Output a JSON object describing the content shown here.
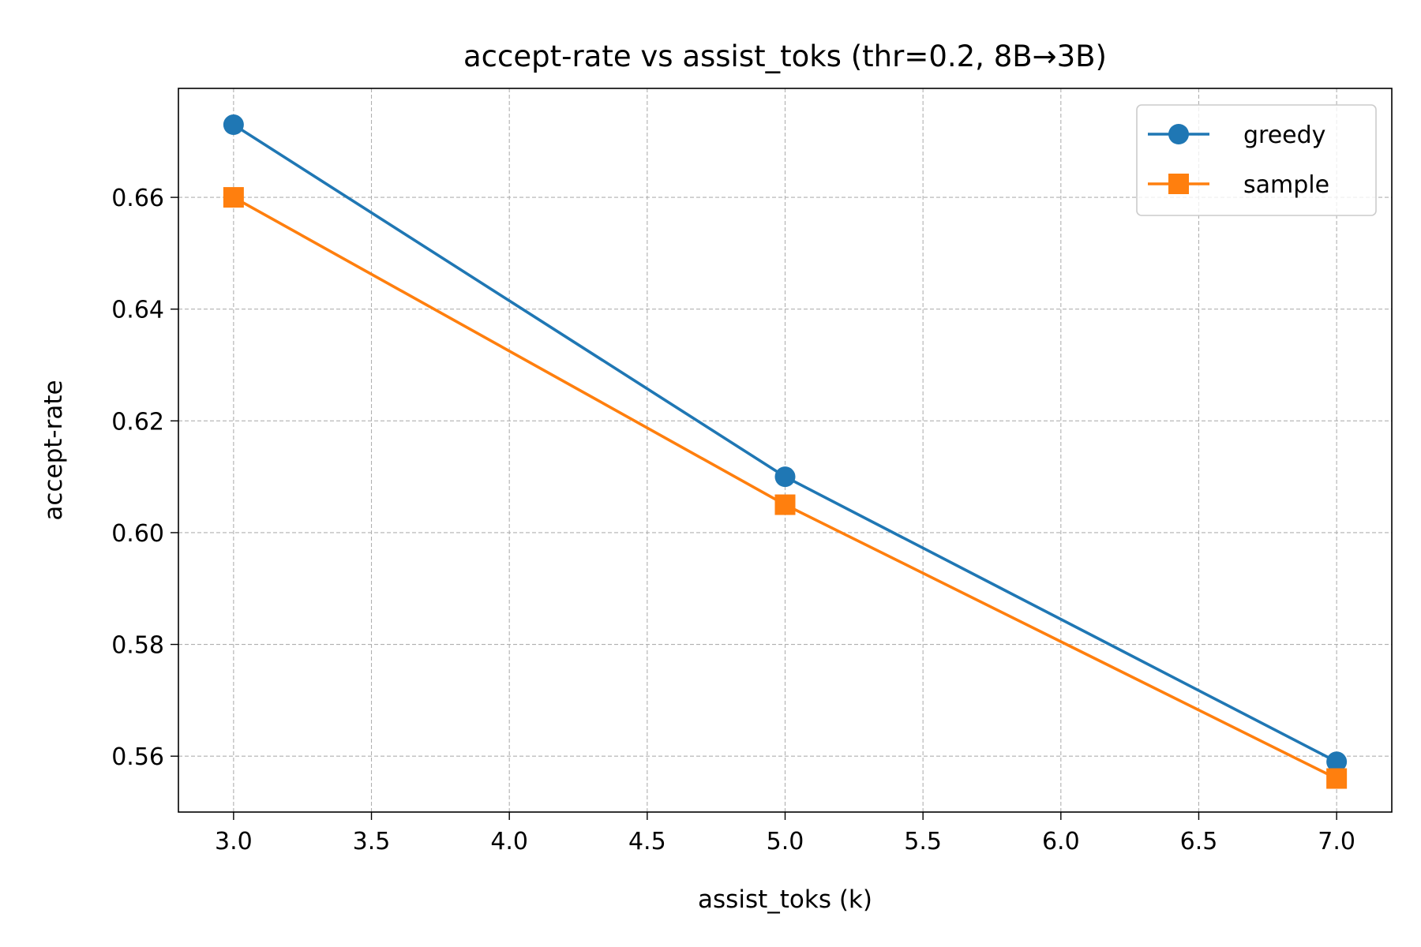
{
  "chart_data": {
    "type": "line",
    "title": "accept-rate vs assist_toks (thr=0.2, 8B→3B)",
    "xlabel": "assist_toks (k)",
    "ylabel": "accept-rate",
    "xlim": [
      2.8,
      7.2
    ],
    "ylim": [
      0.55,
      0.6795
    ],
    "x_ticks": [
      3.0,
      3.5,
      4.0,
      4.5,
      5.0,
      5.5,
      6.0,
      6.5,
      7.0
    ],
    "x_tick_labels": [
      "3.0",
      "3.5",
      "4.0",
      "4.5",
      "5.0",
      "5.5",
      "6.0",
      "6.5",
      "7.0"
    ],
    "y_ticks": [
      0.56,
      0.58,
      0.6,
      0.62,
      0.64,
      0.66
    ],
    "y_tick_labels": [
      "0.56",
      "0.58",
      "0.60",
      "0.62",
      "0.64",
      "0.66"
    ],
    "grid": true,
    "legend_position": "top-right",
    "x": [
      3,
      5,
      7
    ],
    "series": [
      {
        "name": "greedy",
        "values": [
          0.673,
          0.61,
          0.559
        ],
        "color": "#1f77b4",
        "marker": "circle"
      },
      {
        "name": "sample",
        "values": [
          0.66,
          0.605,
          0.556
        ],
        "color": "#ff7f0e",
        "marker": "square"
      }
    ]
  }
}
